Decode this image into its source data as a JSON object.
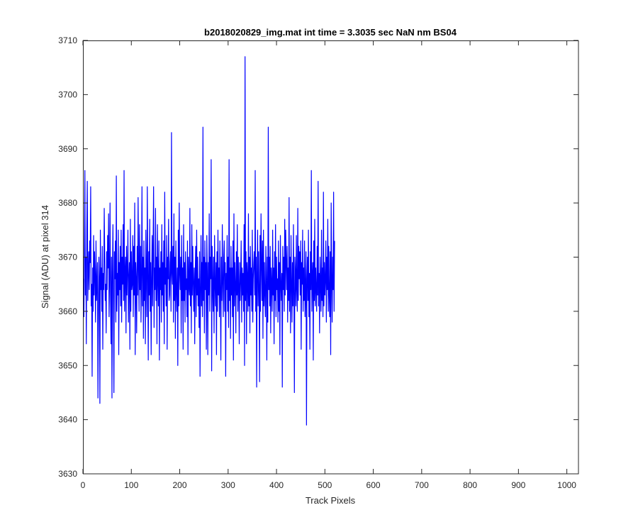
{
  "chart_data": {
    "type": "line",
    "title": "b2018020829_img.mat int time = 3.3035 sec  NaN nm BS04",
    "xlabel": "Track Pixels",
    "ylabel": "Signal (ADU) at pixel 314",
    "xlim": [
      0,
      1024
    ],
    "ylim": [
      3630,
      3710
    ],
    "xticks": [
      0,
      100,
      200,
      300,
      400,
      500,
      600,
      700,
      800,
      900,
      1000
    ],
    "yticks": [
      3630,
      3640,
      3650,
      3660,
      3670,
      3680,
      3690,
      3700,
      3710
    ],
    "grid": false,
    "line_color": "#0000ff",
    "series": [
      {
        "x_start": 1,
        "x_step": 1,
        "values": [
          3666,
          3659,
          3672,
          3686,
          3663,
          3670,
          3654,
          3675,
          3684,
          3662,
          3667,
          3671,
          3664,
          3673,
          3669,
          3683,
          3661,
          3665,
          3648,
          3668,
          3660,
          3674,
          3663,
          3671,
          3666,
          3658,
          3673,
          3662,
          3665,
          3669,
          3644,
          3659,
          3670,
          3666,
          3643,
          3675,
          3664,
          3668,
          3660,
          3672,
          3653,
          3667,
          3664,
          3679,
          3670,
          3662,
          3665,
          3656,
          3671,
          3664,
          3674,
          3668,
          3678,
          3659,
          3666,
          3680,
          3663,
          3654,
          3670,
          3644,
          3667,
          3676,
          3662,
          3645,
          3671,
          3666,
          3673,
          3658,
          3685,
          3660,
          3667,
          3663,
          3675,
          3652,
          3669,
          3664,
          3672,
          3661,
          3675,
          3658,
          3670,
          3665,
          3676,
          3662,
          3686,
          3660,
          3667,
          3670,
          3656,
          3672,
          3663,
          3668,
          3675,
          3658,
          3666,
          3669,
          3653,
          3677,
          3660,
          3671,
          3664,
          3665,
          3674,
          3659,
          3672,
          3663,
          3680,
          3652,
          3669,
          3666,
          3656,
          3672,
          3663,
          3681,
          3668,
          3660,
          3676,
          3664,
          3672,
          3658,
          3667,
          3683,
          3661,
          3670,
          3655,
          3673,
          3662,
          3668,
          3654,
          3675,
          3666,
          3659,
          3683,
          3667,
          3651,
          3671,
          3663,
          3677,
          3660,
          3669,
          3652,
          3666,
          3674,
          3661,
          3672,
          3683,
          3657,
          3668,
          3664,
          3679,
          3662,
          3670,
          3654,
          3676,
          3666,
          3661,
          3673,
          3651,
          3668,
          3664,
          3671,
          3658,
          3676,
          3663,
          3669,
          3660,
          3673,
          3654,
          3682,
          3665,
          3668,
          3661,
          3674,
          3653,
          3670,
          3666,
          3677,
          3662,
          3663,
          3669,
          3671,
          3660,
          3693,
          3667,
          3665,
          3672,
          3658,
          3678,
          3662,
          3670,
          3655,
          3673,
          3664,
          3660,
          3668,
          3650,
          3675,
          3661,
          3680,
          3667,
          3664,
          3670,
          3656,
          3674,
          3662,
          3668,
          3653,
          3676,
          3662,
          3669,
          3658,
          3671,
          3664,
          3666,
          3659,
          3673,
          3652,
          3670,
          3665,
          3663,
          3679,
          3661,
          3669,
          3656,
          3676,
          3663,
          3672,
          3665,
          3660,
          3668,
          3654,
          3667,
          3672,
          3659,
          3675,
          3663,
          3670,
          3661,
          3666,
          3657,
          3671,
          3648,
          3664,
          3674,
          3661,
          3669,
          3659,
          3694,
          3662,
          3670,
          3656,
          3673,
          3664,
          3669,
          3653,
          3674,
          3667,
          3652,
          3669,
          3663,
          3678,
          3660,
          3670,
          3666,
          3688,
          3649,
          3672,
          3665,
          3660,
          3670,
          3656,
          3674,
          3665,
          3661,
          3669,
          3652,
          3671,
          3660,
          3675,
          3663,
          3668,
          3659,
          3673,
          3664,
          3651,
          3670,
          3662,
          3676,
          3665,
          3659,
          3670,
          3673,
          3660,
          3669,
          3648,
          3667,
          3664,
          3674,
          3660,
          3670,
          3657,
          3688,
          3662,
          3668,
          3655,
          3672,
          3663,
          3668,
          3659,
          3673,
          3651,
          3678,
          3661,
          3669,
          3665,
          3656,
          3671,
          3663,
          3676,
          3660,
          3670,
          3665,
          3654,
          3669,
          3662,
          3666,
          3673,
          3658,
          3668,
          3663,
          3667,
          3660,
          3676,
          3650,
          3707,
          3662,
          3671,
          3654,
          3669,
          3666,
          3660,
          3678,
          3661,
          3670,
          3656,
          3672,
          3663,
          3668,
          3660,
          3675,
          3658,
          3666,
          3669,
          3671,
          3663,
          3686,
          3660,
          3670,
          3646,
          3667,
          3675,
          3661,
          3671,
          3664,
          3647,
          3674,
          3660,
          3678,
          3669,
          3662,
          3673,
          3655,
          3675,
          3661,
          3669,
          3663,
          3659,
          3672,
          3666,
          3651,
          3670,
          3658,
          3694,
          3664,
          3670,
          3661,
          3672,
          3656,
          3668,
          3665,
          3660,
          3675,
          3663,
          3668,
          3654,
          3671,
          3662,
          3676,
          3659,
          3670,
          3664,
          3666,
          3658,
          3673,
          3660,
          3669,
          3652,
          3674,
          3665,
          3662,
          3667,
          3646,
          3672,
          3664,
          3670,
          3660,
          3677,
          3663,
          3675,
          3669,
          3664,
          3672,
          3658,
          3668,
          3662,
          3681,
          3660,
          3670,
          3656,
          3674,
          3665,
          3658,
          3669,
          3661,
          3676,
          3663,
          3645,
          3670,
          3667,
          3661,
          3674,
          3664,
          3660,
          3679,
          3662,
          3672,
          3666,
          3671,
          3663,
          3673,
          3653,
          3669,
          3665,
          3675,
          3660,
          3668,
          3662,
          3673,
          3659,
          3664,
          3671,
          3639,
          3666,
          3670,
          3662,
          3675,
          3659,
          3667,
          3653,
          3671,
          3664,
          3686,
          3660,
          3666,
          3669,
          3651,
          3673,
          3662,
          3677,
          3661,
          3668,
          3664,
          3660,
          3672,
          3663,
          3684,
          3661,
          3667,
          3656,
          3670,
          3665,
          3660,
          3675,
          3662,
          3668,
          3659,
          3682,
          3661,
          3669,
          3663,
          3666,
          3673,
          3658,
          3670,
          3664,
          3677,
          3660,
          3672,
          3663,
          3659,
          3671,
          3652,
          3680,
          3666,
          3658,
          3670,
          3664,
          3682,
          3660,
          3673
        ]
      }
    ]
  }
}
